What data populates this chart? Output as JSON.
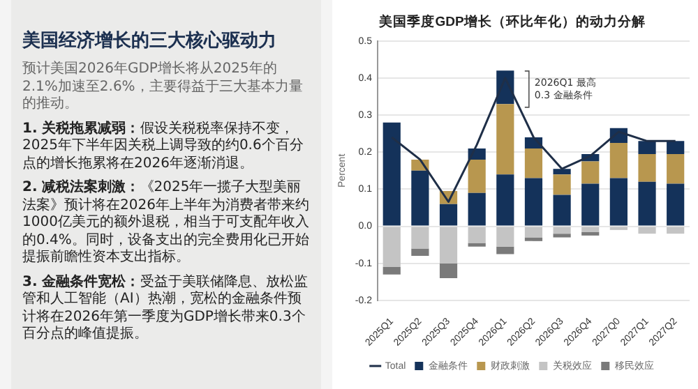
{
  "chart_data": {
    "type": "bar",
    "title": "美国季度GDP增长（环比年化）的动力分解",
    "ylabel": "Percent",
    "categories": [
      "2025Q1",
      "2025Q2",
      "2025Q3",
      "2025Q4",
      "2026Q1",
      "2026Q2",
      "2026Q3",
      "2026Q4",
      "2027Q0",
      "2027Q1",
      "2027Q2"
    ],
    "stacked": true,
    "series": [
      {
        "name": "金融条件",
        "color": "#14325a",
        "values": [
          0.28,
          0.15,
          0.06,
          0.09,
          0.14,
          0.13,
          0.085,
          0.115,
          0.13,
          0.12,
          0.115
        ]
      },
      {
        "name": "财政刺激",
        "color": "#b8974f",
        "values": [
          0,
          0.03,
          0.035,
          0.09,
          0.19,
          0.08,
          0.055,
          0.06,
          0.095,
          0.075,
          0.08
        ]
      },
      {
        "color": "#14325a",
        "values": [
          0,
          0,
          0,
          0.03,
          0.09,
          0.03,
          0.015,
          0.02,
          0.04,
          0.035,
          0.035
        ]
      },
      {
        "name": "关税效应",
        "color": "#c4c4c4",
        "values": [
          -0.11,
          -0.06,
          -0.1,
          -0.045,
          -0.055,
          -0.03,
          -0.02,
          -0.015,
          -0.01,
          -0.02,
          -0.02
        ]
      },
      {
        "name": "移民效应",
        "color": "#7a7a7a",
        "values": [
          -0.02,
          -0.02,
          -0.04,
          -0.01,
          -0.02,
          -0.01,
          -0.01,
          -0.01,
          0,
          0,
          0
        ]
      },
      {
        "name": "Total",
        "type": "line",
        "color": "#1f2f48",
        "values": [
          0.24,
          0.18,
          0.066,
          0.22,
          0.4,
          0.24,
          0.155,
          0.19,
          0.255,
          0.23,
          0.23
        ]
      }
    ],
    "ylim": [
      -0.2,
      0.5
    ],
    "yticks": [
      -0.2,
      -0.1,
      {
        "value": 0,
        "label": "0.0"
      },
      0.1,
      0.2,
      0.3,
      0.4,
      0.5
    ],
    "grid": "y",
    "legend": "bottom",
    "marker": "none",
    "annotations": [
      {
        "text": "2026Q1 最高\n0.3 金融条件",
        "x": "2026Q1",
        "y": 0.37
      },
      "美国经济增长的三大核心驱动力",
      "预计美国2026年GDP增长将从2025年的2.1%加速至2.6%，主要得益于三大基本力量的推动。",
      "1. 关税拖累减弱：假设关税税率保持不变，2025年下半年因关税上调导致的约0.6个百分点的增长拖累将在2026年逐渐消退。",
      "2. 减税法案刺激：《2025年一揽子大型美丽法案》预计将在2026年上半年为消费者带来约1000亿美元的额外退税，相当于可支配年收入的0.4%。同时，设备支出的完全费用化已开始提振前瞻性资本支出指标。",
      "3. 金融条件宽松：受益于美联储降息、放松监管和人工智能（AI）热潮，宽松的金融条件预计将在2026年第一季度为GDP增长带来0.3个百分点的峰值提振。"
    ]
  }
}
